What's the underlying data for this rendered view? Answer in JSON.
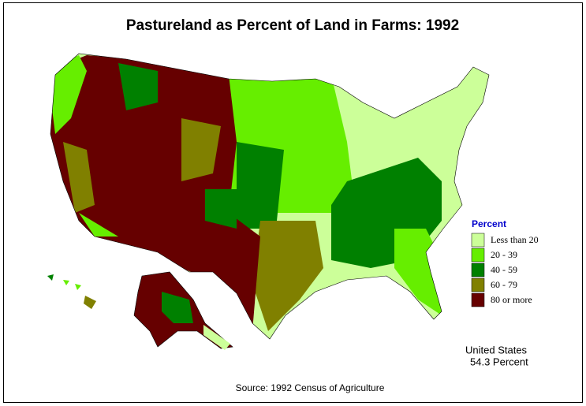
{
  "title": "Pastureland as Percent of Land in Farms:  1992",
  "legend": {
    "title": "Percent",
    "items": [
      {
        "label": "Less than 20",
        "color": "#ccff99"
      },
      {
        "label": "20  -  39",
        "color": "#66ee00"
      },
      {
        "label": "40  -  59",
        "color": "#008000"
      },
      {
        "label": "60  -  79",
        "color": "#808000"
      },
      {
        "label": "80 or more",
        "color": "#660000"
      }
    ]
  },
  "note": {
    "line1": "United States",
    "line2": "54.3 Percent"
  },
  "source": "Source:  1992 Census of Agriculture"
}
